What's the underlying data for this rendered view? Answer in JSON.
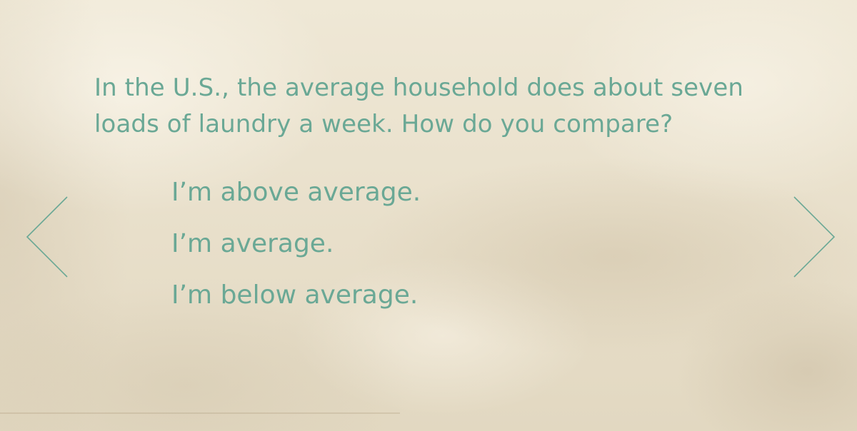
{
  "slide": {
    "question": "In the U.S., the average household does about seven loads of laundry a week. How do you compare?",
    "options": [
      {
        "label": "I’m above average."
      },
      {
        "label": "I’m average."
      },
      {
        "label": "I’m below average."
      }
    ]
  },
  "navigation": {
    "prev_icon": "chevron-left-icon",
    "next_icon": "chevron-right-icon"
  },
  "colors": {
    "accent": "#6aa895",
    "background": "#ebe3d0"
  }
}
